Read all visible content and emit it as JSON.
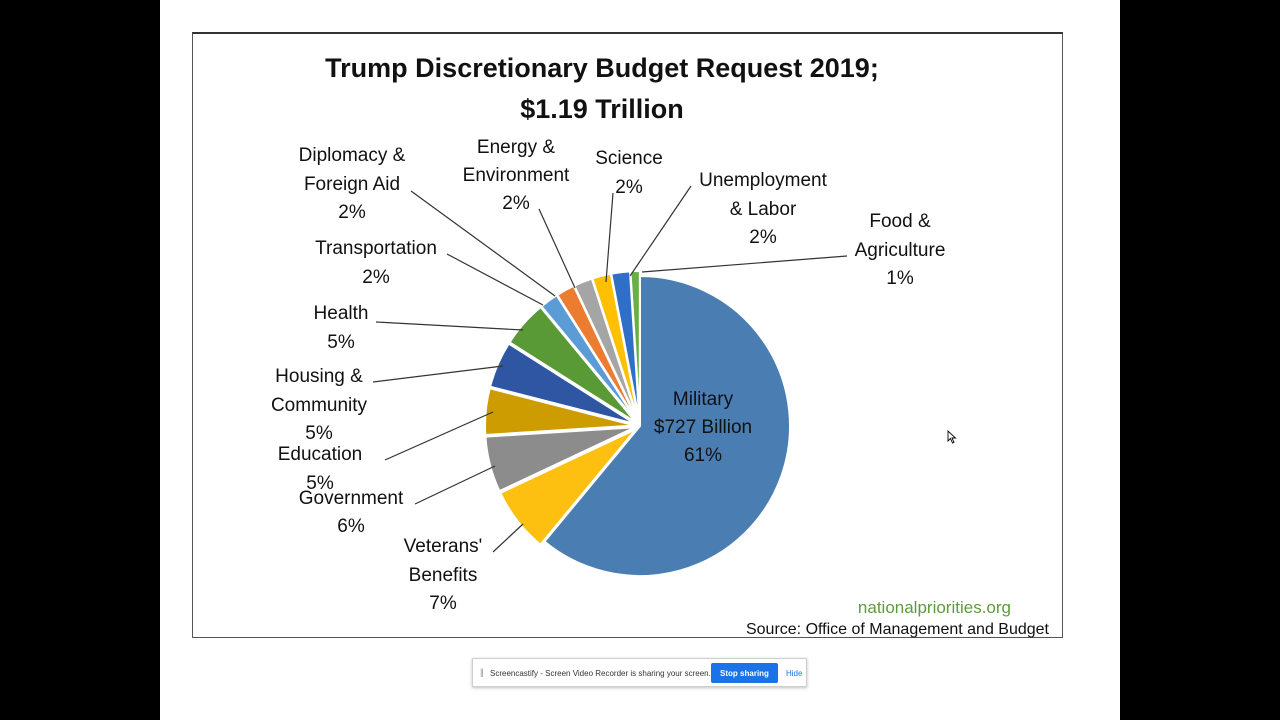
{
  "chart_data": {
    "type": "pie",
    "title_lines": [
      "Trump Discretionary Budget Request 2019;",
      "$1.19 Trillion"
    ],
    "slices": [
      {
        "name": "Military",
        "detail": "$727 Billion",
        "pct_label": "61%",
        "value": 61,
        "color": "#4a7eb2"
      },
      {
        "name": "Veterans' Benefits",
        "pct_label": "7%",
        "value": 7,
        "color": "#fdc010"
      },
      {
        "name": "Government",
        "pct_label": "6%",
        "value": 6,
        "color": "#8c8c8c"
      },
      {
        "name": "Education",
        "pct_label": "5%",
        "value": 5,
        "color": "#cd9c00"
      },
      {
        "name": "Housing & Community",
        "pct_label": "5%",
        "value": 5,
        "color": "#2e56a2"
      },
      {
        "name": "Health",
        "pct_label": "5%",
        "value": 5,
        "color": "#5a9a36"
      },
      {
        "name": "Transportation",
        "pct_label": "2%",
        "value": 2,
        "color": "#5b9bd6"
      },
      {
        "name": "Diplomacy & Foreign Aid",
        "pct_label": "2%",
        "value": 2,
        "color": "#ec7c30"
      },
      {
        "name": "Energy & Environment",
        "pct_label": "2%",
        "value": 2,
        "color": "#a5a5a5"
      },
      {
        "name": "Science",
        "pct_label": "2%",
        "value": 2,
        "color": "#fec000"
      },
      {
        "name": "Unemployment & Labor",
        "pct_label": "2%",
        "value": 2,
        "color": "#2f6fc8"
      },
      {
        "name": "Food & Agriculture",
        "pct_label": "1%",
        "value": 1,
        "color": "#6aaf46"
      }
    ],
    "source_site": "nationalpriorities.org",
    "source_text": "Source:  Office of Management  and Budget",
    "colors": {
      "site": "#5f9a3b"
    }
  },
  "share_bar": {
    "message": "Screencastify - Screen Video Recorder is sharing your screen.",
    "stop_label": "Stop sharing",
    "hide_label": "Hide"
  }
}
